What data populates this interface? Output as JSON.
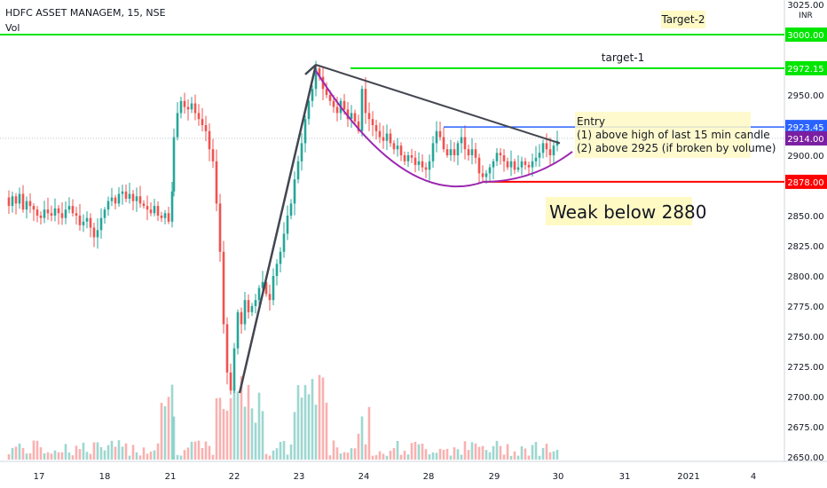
{
  "header": {
    "title": "HDFC ASSET MANAGEM, 15, NSE",
    "volume_label": "Vol"
  },
  "chart_data": {
    "type": "candlestick",
    "title": "HDFC ASSET MANAGEM, 15, NSE",
    "currency": "INR",
    "x_ticks": [
      "17",
      "18",
      "21",
      "22",
      "23",
      "24",
      "28",
      "29",
      "30",
      "31",
      "2021",
      "4"
    ],
    "y_ticks": [
      3025,
      3000,
      2975,
      2950,
      2925,
      2900,
      2875,
      2850,
      2825,
      2800,
      2775,
      2750,
      2725,
      2700,
      2675,
      2650
    ],
    "y_top_label": "3025.00",
    "ylim": [
      2650,
      3025
    ],
    "current_price": 2914.0,
    "price_path": [
      [
        6,
        2865
      ],
      [
        10,
        2858
      ],
      [
        14,
        2866
      ],
      [
        18,
        2860
      ],
      [
        22,
        2868
      ],
      [
        26,
        2855
      ],
      [
        30,
        2862
      ],
      [
        34,
        2858
      ],
      [
        38,
        2855
      ],
      [
        42,
        2850
      ],
      [
        46,
        2848
      ],
      [
        50,
        2855
      ],
      [
        54,
        2852
      ],
      [
        58,
        2850
      ],
      [
        62,
        2856
      ],
      [
        66,
        2852
      ],
      [
        70,
        2848
      ],
      [
        74,
        2855
      ],
      [
        78,
        2858
      ],
      [
        82,
        2852
      ],
      [
        86,
        2850
      ],
      [
        90,
        2842
      ],
      [
        94,
        2845
      ],
      [
        98,
        2848
      ],
      [
        102,
        2840
      ],
      [
        106,
        2832
      ],
      [
        110,
        2838
      ],
      [
        114,
        2848
      ],
      [
        118,
        2855
      ],
      [
        122,
        2862
      ],
      [
        126,
        2865
      ],
      [
        130,
        2860
      ],
      [
        134,
        2868
      ],
      [
        138,
        2870
      ],
      [
        142,
        2864
      ],
      [
        146,
        2868
      ],
      [
        150,
        2862
      ],
      [
        154,
        2866
      ],
      [
        158,
        2860
      ],
      [
        162,
        2858
      ],
      [
        166,
        2855
      ],
      [
        170,
        2852
      ],
      [
        174,
        2858
      ],
      [
        178,
        2850
      ],
      [
        182,
        2848
      ],
      [
        186,
        2852
      ],
      [
        190,
        2845
      ],
      [
        194,
        2870
      ],
      [
        196,
        2915
      ],
      [
        200,
        2935
      ],
      [
        204,
        2945
      ],
      [
        208,
        2940
      ],
      [
        212,
        2938
      ],
      [
        216,
        2943
      ],
      [
        220,
        2935
      ],
      [
        224,
        2930
      ],
      [
        228,
        2925
      ],
      [
        232,
        2920
      ],
      [
        236,
        2905
      ],
      [
        240,
        2895
      ],
      [
        244,
        2860
      ],
      [
        248,
        2820
      ],
      [
        252,
        2760
      ],
      [
        256,
        2720
      ],
      [
        260,
        2705
      ],
      [
        264,
        2740
      ],
      [
        268,
        2770
      ],
      [
        272,
        2760
      ],
      [
        276,
        2780
      ],
      [
        280,
        2770
      ],
      [
        284,
        2775
      ],
      [
        288,
        2780
      ],
      [
        292,
        2790
      ],
      [
        296,
        2795
      ],
      [
        300,
        2785
      ],
      [
        304,
        2780
      ],
      [
        308,
        2800
      ],
      [
        312,
        2810
      ],
      [
        316,
        2820
      ],
      [
        320,
        2835
      ],
      [
        324,
        2850
      ],
      [
        328,
        2860
      ],
      [
        332,
        2880
      ],
      [
        336,
        2895
      ],
      [
        340,
        2910
      ],
      [
        344,
        2930
      ],
      [
        348,
        2945
      ],
      [
        352,
        2955
      ],
      [
        356,
        2972
      ],
      [
        360,
        2965
      ],
      [
        364,
        2955
      ],
      [
        368,
        2950
      ],
      [
        372,
        2945
      ],
      [
        376,
        2940
      ],
      [
        380,
        2935
      ],
      [
        384,
        2945
      ],
      [
        388,
        2938
      ],
      [
        392,
        2930
      ],
      [
        396,
        2935
      ],
      [
        400,
        2928
      ],
      [
        404,
        2920
      ],
      [
        408,
        2955
      ],
      [
        412,
        2935
      ],
      [
        416,
        2930
      ],
      [
        420,
        2925
      ],
      [
        424,
        2920
      ],
      [
        428,
        2915
      ],
      [
        432,
        2912
      ],
      [
        436,
        2918
      ],
      [
        440,
        2910
      ],
      [
        444,
        2905
      ],
      [
        448,
        2908
      ],
      [
        452,
        2900
      ],
      [
        456,
        2895
      ],
      [
        460,
        2900
      ],
      [
        464,
        2898
      ],
      [
        468,
        2892
      ],
      [
        472,
        2895
      ],
      [
        476,
        2890
      ],
      [
        480,
        2888
      ],
      [
        484,
        2895
      ],
      [
        488,
        2910
      ],
      [
        492,
        2920
      ],
      [
        496,
        2915
      ],
      [
        500,
        2905
      ],
      [
        504,
        2900
      ],
      [
        508,
        2905
      ],
      [
        512,
        2900
      ],
      [
        516,
        2910
      ],
      [
        520,
        2915
      ],
      [
        524,
        2905
      ],
      [
        528,
        2900
      ],
      [
        532,
        2905
      ],
      [
        536,
        2898
      ],
      [
        540,
        2885
      ],
      [
        544,
        2882
      ],
      [
        548,
        2885
      ],
      [
        552,
        2890
      ],
      [
        556,
        2895
      ],
      [
        560,
        2902
      ],
      [
        564,
        2900
      ],
      [
        568,
        2895
      ],
      [
        572,
        2890
      ],
      [
        576,
        2895
      ],
      [
        580,
        2888
      ],
      [
        584,
        2890
      ],
      [
        588,
        2895
      ],
      [
        592,
        2892
      ],
      [
        596,
        2890
      ],
      [
        600,
        2895
      ],
      [
        604,
        2898
      ],
      [
        608,
        2902
      ],
      [
        612,
        2910
      ],
      [
        616,
        2905
      ],
      [
        620,
        2900
      ],
      [
        624,
        2908
      ],
      [
        628,
        2912
      ]
    ],
    "annotations": {
      "horizontal_levels": [
        {
          "name": "target-2-line",
          "price": 3000.0,
          "price_label": "3000.00",
          "color": "#00e600"
        },
        {
          "name": "target-1-line",
          "price": 2972.15,
          "price_label": "2972.15",
          "color": "#00e600"
        },
        {
          "name": "entry-line",
          "price": 2923.45,
          "price_label": "2923.45",
          "color": "#2962ff"
        },
        {
          "name": "weak-line",
          "price": 2878.0,
          "price_label": "2878.00",
          "color": "#ff0000"
        }
      ],
      "target_2_text": "Target-2",
      "target_1_text": "target-1",
      "entry_title": "Entry",
      "entry_line_1": "(1) above high of last 15 min candle",
      "entry_line_2": "(2) above 2925 (if broken by volume)",
      "weak_text": "Weak below 2880",
      "current_price_label": "2914.00",
      "currency_label": "INR"
    }
  }
}
